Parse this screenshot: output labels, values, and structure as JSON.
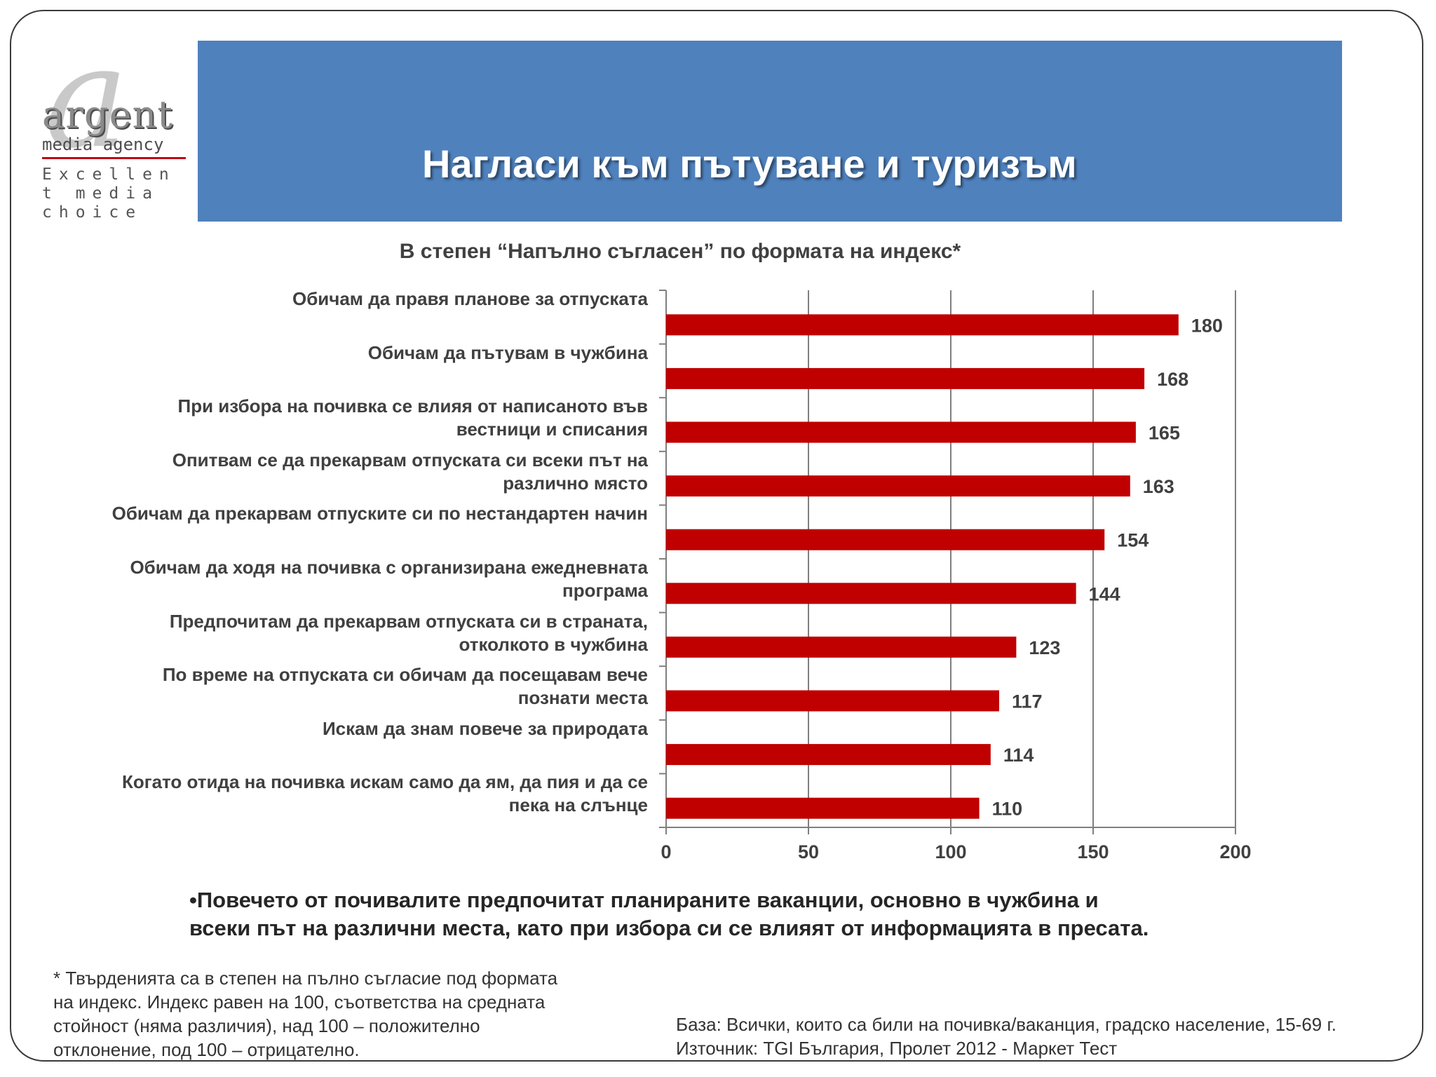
{
  "logo": {
    "mark": "a",
    "name": "argent",
    "subtitle": "media agency",
    "tagline": "Excellent media choice"
  },
  "header": {
    "title": "Нагласи към пътуване и туризъм"
  },
  "chart_data": {
    "type": "bar",
    "orientation": "horizontal",
    "title": "В степен “Напълно съгласен” по формата на индекс*",
    "categories": [
      "Обичам да правя планове за отпуската",
      "Обичам да пътувам в чужбина",
      "При избора на почивка се влияя от написаното във вестници и списания",
      "Опитвам се да прекарвам отпуската си всеки път на различно място",
      "Обичам да прекарвам отпуските си по нестандартен начин",
      "Обичам да ходя на почивка с организирана ежедневната програма",
      "Предпочитам да прекарвам отпуската си в страната, отколкото в чужбина",
      "По време на отпуската си обичам да посещавам вече познати места",
      "Искам да знам повече за природата",
      "Когато отида на почивка искам само да ям, да пия и да се пека на слънце"
    ],
    "category_lines": [
      [
        "Обичам да правя планове за отпуската"
      ],
      [
        "Обичам да пътувам в чужбина"
      ],
      [
        "При избора на почивка се влияя от написаното във",
        "вестници и списания"
      ],
      [
        "Опитвам се да прекарвам отпуската си всеки път на",
        "различно място"
      ],
      [
        "Обичам да прекарвам отпуските си по нестандартен начин"
      ],
      [
        "Обичам да ходя на почивка с организирана ежедневната",
        "програма"
      ],
      [
        "Предпочитам да прекарвам отпуската си в страната,",
        "отколкото в чужбина"
      ],
      [
        "По време на отпуската си обичам да посещавам вече",
        "познати места"
      ],
      [
        "Искам да знам повече за природата"
      ],
      [
        "Когато отида на почивка искам само да ям, да пия и да се",
        "пека на слънце"
      ]
    ],
    "values": [
      180,
      168,
      165,
      163,
      154,
      144,
      123,
      117,
      114,
      110
    ],
    "xlim": [
      0,
      200
    ],
    "xticks": [
      0,
      50,
      100,
      150,
      200
    ],
    "xtick_labels": [
      "0",
      "50",
      "100",
      "150",
      "200"
    ],
    "grid": true,
    "bar_color": "#c00000"
  },
  "conclusion": [
    "•Повечето от почивалите предпочитат планираните ваканции, основно в чужбина и",
    "всеки път на различни места, като при избора си се влияят от информацията в пресата."
  ],
  "footnote": [
    "* Твърденията са в степен на пълно съгласие под формата",
    "на индекс. Индекс равен на 100, съответства на средната",
    "стойност (няма различия), над 100 – положително",
    "отклонение, под 100 – отрицателно."
  ],
  "source": {
    "base": "База: Всички, които са били на почивка/ваканция, градско население, 15-69 г.",
    "origin": "Източник: TGI България, Пролет 2012 - Маркет Тест"
  }
}
